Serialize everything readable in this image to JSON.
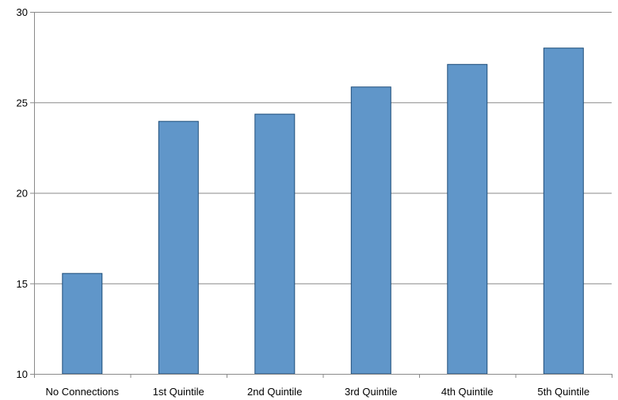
{
  "chart_data": {
    "type": "bar",
    "categories": [
      "No Connections",
      "1st Quintile",
      "2nd Quintile",
      "3rd Quintile",
      "4th Quintile",
      "5th Quintile"
    ],
    "values": [
      15.55,
      23.95,
      24.35,
      25.85,
      27.1,
      28.0
    ],
    "ylim": [
      10,
      30
    ],
    "yticks": [
      10,
      15,
      20,
      25,
      30
    ],
    "grid": true,
    "colors": {
      "bar_fill": "#6096c9",
      "bar_stroke": "#1f4e7a",
      "grid": "#8a8a8a"
    }
  }
}
